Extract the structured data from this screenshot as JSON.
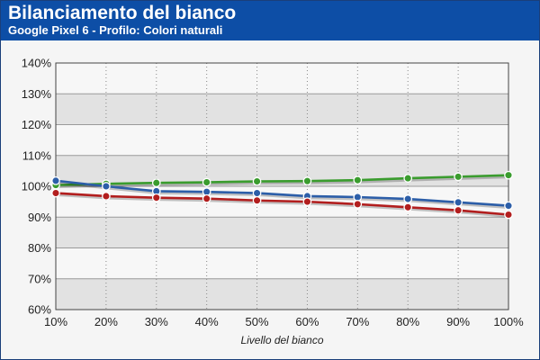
{
  "header": {
    "title": "Bilanciamento del bianco",
    "subtitle": "Google Pixel 6 - Profilo: Colori naturali",
    "background_color": "#0d4ea6"
  },
  "chart_data": {
    "type": "line",
    "title": "Bilanciamento del bianco",
    "subtitle": "Google Pixel 6 - Profilo: Colori naturali",
    "xlabel": "Livello del bianco",
    "ylabel": "",
    "categories": [
      "10%",
      "20%",
      "30%",
      "40%",
      "50%",
      "60%",
      "70%",
      "80%",
      "90%",
      "100%"
    ],
    "yticks": [
      "60%",
      "70%",
      "80%",
      "90%",
      "100%",
      "110%",
      "120%",
      "130%",
      "140%"
    ],
    "ylim": [
      60,
      140
    ],
    "grid": true,
    "legend": "none",
    "series": [
      {
        "color": "#3a9c2e",
        "values": [
          100.4,
          100.8,
          101.1,
          101.3,
          101.6,
          101.7,
          102.0,
          102.6,
          103.1,
          103.6
        ]
      },
      {
        "color": "#2c5ea8",
        "values": [
          101.8,
          100.0,
          98.4,
          98.2,
          97.8,
          96.8,
          96.5,
          95.9,
          94.8,
          93.7
        ]
      },
      {
        "color": "#b21e1e",
        "values": [
          97.8,
          96.8,
          96.3,
          96.0,
          95.4,
          95.0,
          94.2,
          93.2,
          92.2,
          90.8
        ]
      }
    ]
  }
}
